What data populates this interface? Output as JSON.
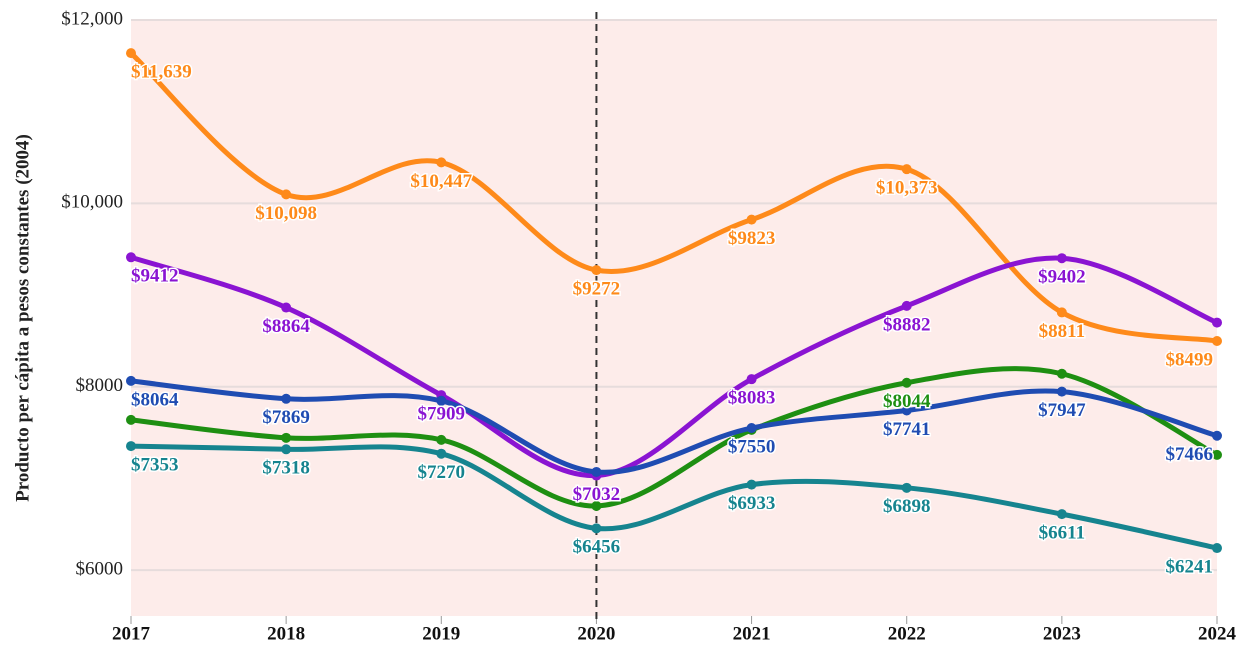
{
  "chart_data": {
    "type": "line",
    "y_label": "Producto per cápita a pesos constantes (2004)",
    "categories": [
      "2017",
      "2018",
      "2019",
      "2020",
      "2021",
      "2022",
      "2023",
      "2024"
    ],
    "vline_x": "2020",
    "ylim": [
      5500,
      12000
    ],
    "yticks": [
      {
        "value": 6000,
        "label": "$6000"
      },
      {
        "value": 8000,
        "label": "$8000"
      },
      {
        "value": 10000,
        "label": "$10,000"
      },
      {
        "value": 12000,
        "label": "$12,000"
      }
    ],
    "grid": true,
    "series": [
      {
        "color": "#fe8a1a",
        "values": [
          11639,
          10098,
          10447,
          9272,
          9823,
          10373,
          8811,
          8499
        ],
        "value_labels": [
          "$11,639",
          "$10,098",
          "$10,447",
          "$9272",
          "$9823",
          "$10,373",
          "$8811",
          "$8499"
        ]
      },
      {
        "color": "#8a14d2",
        "values": [
          9412,
          8864,
          7909,
          7032,
          8083,
          8882,
          9402,
          8700
        ],
        "value_labels": [
          "$9412",
          "$8864",
          "$7909",
          "$7032",
          "$8083",
          "$8882",
          "$9402",
          null
        ]
      },
      {
        "color": "#1e8f12",
        "values": [
          7639,
          7443,
          7421,
          6700,
          7530,
          8044,
          8142,
          7257
        ],
        "value_labels": [
          null,
          null,
          null,
          null,
          null,
          "$8044",
          null,
          null
        ]
      },
      {
        "color": "#1f4cb2",
        "values": [
          8064,
          7869,
          7847,
          7071,
          7550,
          7741,
          7947,
          7466
        ],
        "value_labels": [
          "$8064",
          "$7869",
          null,
          null,
          "$7550",
          "$7741",
          "$7947",
          "$7466"
        ]
      },
      {
        "color": "#16848f",
        "values": [
          7353,
          7318,
          7270,
          6456,
          6933,
          6898,
          6611,
          6241
        ],
        "value_labels": [
          "$7353",
          "$7318",
          "$7270",
          "$6456",
          "$6933",
          "$6898",
          "$6611",
          "$6241"
        ]
      }
    ]
  }
}
